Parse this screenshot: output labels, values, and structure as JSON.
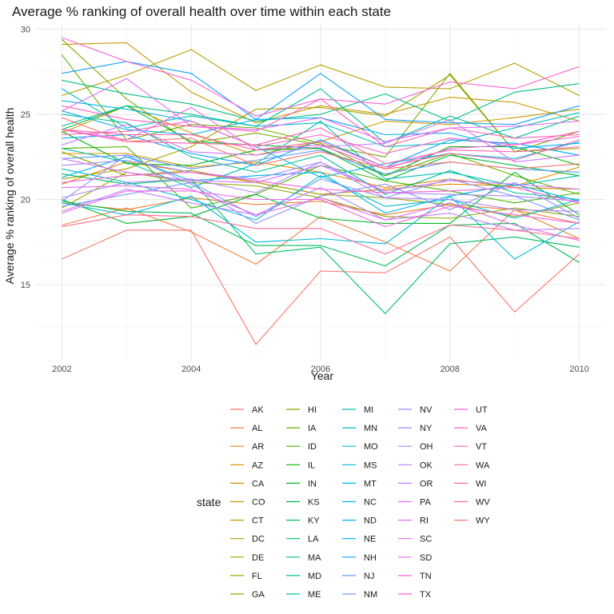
{
  "chart_data": {
    "type": "line",
    "title": "Average % ranking of overall health over time within each state",
    "xlabel": "Year",
    "ylabel": "Average % ranking of overall health",
    "x": [
      2002,
      2003,
      2004,
      2005,
      2006,
      2007,
      2008,
      2009,
      2010
    ],
    "xlim": [
      2002,
      2010
    ],
    "ylim": [
      10.5,
      30.3
    ],
    "xticks": [
      2002,
      2004,
      2006,
      2008,
      2010
    ],
    "yticks": [
      15,
      20,
      25,
      30
    ],
    "grid": true,
    "legend_title": "state",
    "legend_position": "bottom",
    "series": [
      {
        "name": "AK",
        "color": "#F8766D",
        "values": [
          16.5,
          18.2,
          18.2,
          11.5,
          15.8,
          15.7,
          17.8,
          13.4,
          16.8
        ]
      },
      {
        "name": "AL",
        "color": "#F47D4D",
        "values": [
          18.5,
          19.5,
          18.1,
          16.2,
          19.0,
          17.5,
          15.8,
          19.4,
          18.6
        ]
      },
      {
        "name": "AR",
        "color": "#EF8325",
        "values": [
          19.8,
          19.4,
          20.1,
          19.7,
          19.9,
          19.1,
          19.7,
          19.4,
          17.7
        ]
      },
      {
        "name": "AZ",
        "color": "#E38900",
        "values": [
          20.9,
          22.2,
          21.6,
          21.0,
          20.3,
          20.6,
          20.9,
          20.8,
          21.9
        ]
      },
      {
        "name": "CA",
        "color": "#D89000",
        "values": [
          22.7,
          22.7,
          21.9,
          22.2,
          21.6,
          20.7,
          21.2,
          20.7,
          20.6
        ]
      },
      {
        "name": "CO",
        "color": "#CE9700",
        "values": [
          23.9,
          25.5,
          23.9,
          22.6,
          23.4,
          24.6,
          24.4,
          24.8,
          25.3
        ]
      },
      {
        "name": "CT",
        "color": "#C49A00",
        "values": [
          29.1,
          29.2,
          26.3,
          24.5,
          25.5,
          25.0,
          26.0,
          25.7,
          24.6
        ]
      },
      {
        "name": "DC",
        "color": "#B79F00",
        "values": [
          26.1,
          27.3,
          28.8,
          26.4,
          27.9,
          26.6,
          26.5,
          28.0,
          26.1
        ]
      },
      {
        "name": "DE",
        "color": "#AAA300",
        "values": [
          21.2,
          21.8,
          23.1,
          25.3,
          25.4,
          24.9,
          27.3,
          22.8,
          23.0
        ]
      },
      {
        "name": "FL",
        "color": "#9DA700",
        "values": [
          22.8,
          21.4,
          21.7,
          21.0,
          20.3,
          20.1,
          19.7,
          19.0,
          19.8
        ]
      },
      {
        "name": "GA",
        "color": "#8EAB00",
        "values": [
          19.5,
          21.6,
          21.0,
          20.8,
          20.1,
          19.0,
          18.9,
          19.5,
          19.0
        ]
      },
      {
        "name": "HI",
        "color": "#7CAE00",
        "values": [
          29.4,
          25.9,
          23.3,
          23.9,
          23.2,
          22.5,
          27.4,
          22.8,
          24.0
        ]
      },
      {
        "name": "IA",
        "color": "#68B200",
        "values": [
          28.5,
          23.5,
          24.4,
          24.2,
          23.3,
          21.4,
          22.7,
          21.4,
          20.3
        ]
      },
      {
        "name": "ID",
        "color": "#4BB400",
        "values": [
          23.0,
          23.1,
          19.5,
          20.3,
          22.0,
          21.1,
          20.5,
          19.8,
          20.4
        ]
      },
      {
        "name": "IL",
        "color": "#00B702",
        "values": [
          24.0,
          22.1,
          22.0,
          22.9,
          23.0,
          21.4,
          23.1,
          23.1,
          22.0
        ]
      },
      {
        "name": "IN",
        "color": "#00B92A",
        "values": [
          20.0,
          18.6,
          19.0,
          20.3,
          18.9,
          18.6,
          18.6,
          21.6,
          19.1
        ]
      },
      {
        "name": "KS",
        "color": "#00BA42",
        "values": [
          24.1,
          25.5,
          23.4,
          23.2,
          23.0,
          21.1,
          22.6,
          22.0,
          21.4
        ]
      },
      {
        "name": "KY",
        "color": "#00BC56",
        "values": [
          19.9,
          19.3,
          19.2,
          17.3,
          17.3,
          16.1,
          18.5,
          18.6,
          16.3
        ]
      },
      {
        "name": "LA",
        "color": "#00BD67",
        "values": [
          21.5,
          20.9,
          21.2,
          16.8,
          17.2,
          13.3,
          17.4,
          17.8,
          17.2
        ]
      },
      {
        "name": "MA",
        "color": "#00BF7D",
        "values": [
          27.0,
          26.2,
          25.6,
          24.6,
          25.0,
          26.2,
          24.6,
          26.3,
          26.8
        ]
      },
      {
        "name": "MD",
        "color": "#00C08B",
        "values": [
          24.3,
          25.5,
          25.0,
          24.3,
          26.5,
          23.3,
          24.9,
          23.6,
          24.9
        ]
      },
      {
        "name": "ME",
        "color": "#00C097",
        "values": [
          25.0,
          24.5,
          22.5,
          21.6,
          22.6,
          20.3,
          21.7,
          20.4,
          20.0
        ]
      },
      {
        "name": "MI",
        "color": "#00C0AF",
        "values": [
          23.0,
          22.2,
          20.7,
          22.1,
          24.6,
          21.2,
          21.6,
          20.8,
          21.4
        ]
      },
      {
        "name": "MN",
        "color": "#00BFC4",
        "values": [
          26.5,
          24.2,
          24.9,
          24.3,
          24.5,
          23.1,
          23.3,
          24.2,
          25.1
        ]
      },
      {
        "name": "MO",
        "color": "#00BDD0",
        "values": [
          21.8,
          21.0,
          20.0,
          18.8,
          21.4,
          19.6,
          20.0,
          18.9,
          20.0
        ]
      },
      {
        "name": "MS",
        "color": "#00BBDB",
        "values": [
          19.8,
          19.1,
          20.2,
          17.5,
          17.7,
          17.4,
          20.2,
          16.5,
          18.7
        ]
      },
      {
        "name": "MT",
        "color": "#00B8E5",
        "values": [
          25.8,
          25.3,
          24.6,
          23.1,
          21.3,
          22.1,
          22.7,
          22.4,
          23.4
        ]
      },
      {
        "name": "NC",
        "color": "#00B4F0",
        "values": [
          21.3,
          22.5,
          21.1,
          21.4,
          21.6,
          19.2,
          20.2,
          20.9,
          19.9
        ]
      },
      {
        "name": "ND",
        "color": "#00ADF9",
        "values": [
          25.2,
          24.1,
          23.8,
          24.7,
          24.8,
          23.8,
          23.9,
          23.0,
          23.3
        ]
      },
      {
        "name": "NE",
        "color": "#00A5FF",
        "values": [
          23.6,
          23.8,
          22.7,
          22.0,
          23.5,
          21.9,
          23.5,
          23.3,
          22.6
        ]
      },
      {
        "name": "NH",
        "color": "#13A0FF",
        "values": [
          27.4,
          28.1,
          27.4,
          24.7,
          27.4,
          24.7,
          24.5,
          24.4,
          25.5
        ]
      },
      {
        "name": "NJ",
        "color": "#619CFF",
        "values": [
          22.4,
          22.6,
          21.8,
          22.3,
          22.9,
          21.5,
          22.2,
          21.8,
          21.6
        ]
      },
      {
        "name": "NM",
        "color": "#7D97FF",
        "values": [
          19.6,
          20.3,
          21.0,
          19.0,
          21.2,
          20.1,
          21.2,
          20.2,
          18.8
        ]
      },
      {
        "name": "NV",
        "color": "#8F93FF",
        "values": [
          19.9,
          22.6,
          20.9,
          18.6,
          20.2,
          20.9,
          19.4,
          21.0,
          18.9
        ]
      },
      {
        "name": "NY",
        "color": "#A58AFF",
        "values": [
          22.0,
          22.3,
          21.6,
          21.2,
          22.2,
          20.4,
          20.3,
          20.2,
          19.9
        ]
      },
      {
        "name": "OH",
        "color": "#B385FF",
        "values": [
          20.1,
          21.0,
          21.2,
          20.4,
          22.2,
          20.1,
          20.0,
          19.4,
          19.3
        ]
      },
      {
        "name": "OK",
        "color": "#BF80FF",
        "values": [
          19.3,
          20.6,
          19.8,
          19.1,
          20.7,
          18.8,
          19.2,
          18.2,
          18.3
        ]
      },
      {
        "name": "OR",
        "color": "#CC7AFF",
        "values": [
          23.2,
          24.4,
          22.8,
          22.6,
          23.1,
          23.3,
          24.7,
          22.2,
          22.6
        ]
      },
      {
        "name": "PA",
        "color": "#D874FD",
        "values": [
          22.4,
          21.6,
          21.1,
          21.0,
          22.0,
          20.5,
          21.1,
          20.9,
          20.6
        ]
      },
      {
        "name": "RI",
        "color": "#E16CF6",
        "values": [
          25.2,
          27.1,
          24.3,
          24.1,
          24.8,
          23.4,
          24.2,
          24.3,
          24.6
        ]
      },
      {
        "name": "SC",
        "color": "#E96BEF",
        "values": [
          20.7,
          20.8,
          20.6,
          19.1,
          20.1,
          18.8,
          19.8,
          18.5,
          17.6
        ]
      },
      {
        "name": "SD",
        "color": "#F066EA",
        "values": [
          24.1,
          23.5,
          25.4,
          22.9,
          23.2,
          21.8,
          23.0,
          23.2,
          23.7
        ]
      },
      {
        "name": "TN",
        "color": "#F564E3",
        "values": [
          19.2,
          20.5,
          20.5,
          20.0,
          20.0,
          18.4,
          19.6,
          19.1,
          18.6
        ]
      },
      {
        "name": "TX",
        "color": "#FA62DB",
        "values": [
          21.0,
          21.4,
          21.6,
          21.1,
          20.6,
          20.4,
          20.5,
          20.7,
          19.8
        ]
      },
      {
        "name": "UT",
        "color": "#FC61D5",
        "values": [
          29.5,
          28.1,
          27.0,
          24.9,
          25.9,
          25.6,
          26.9,
          26.5,
          27.8
        ]
      },
      {
        "name": "VA",
        "color": "#FF61C3",
        "values": [
          23.8,
          24.0,
          24.6,
          23.1,
          23.8,
          22.7,
          23.6,
          23.2,
          24.0
        ]
      },
      {
        "name": "VT",
        "color": "#FF62BC",
        "values": [
          25.5,
          24.7,
          24.3,
          24.0,
          25.9,
          23.1,
          24.2,
          23.6,
          23.8
        ]
      },
      {
        "name": "WA",
        "color": "#FF64B0",
        "values": [
          24.1,
          23.4,
          23.3,
          23.2,
          24.2,
          22.1,
          22.9,
          22.8,
          23.1
        ]
      },
      {
        "name": "WI",
        "color": "#FF67A4",
        "values": [
          24.1,
          23.8,
          23.8,
          22.9,
          23.4,
          21.9,
          22.7,
          22.3,
          23.5
        ]
      },
      {
        "name": "WV",
        "color": "#FF6C91",
        "values": [
          18.4,
          19.1,
          19.0,
          18.3,
          18.3,
          16.8,
          18.5,
          18.2,
          17.7
        ]
      },
      {
        "name": "WY",
        "color": "#F8766D",
        "values": [
          24.8,
          23.4,
          23.6,
          22.0,
          22.8,
          21.8,
          22.2,
          21.8,
          22.1
        ]
      }
    ]
  },
  "colors": {
    "grid_major": "#e6e6e6",
    "grid_minor": "#f2f2f2",
    "text": "#1a1a1a",
    "tick_text": "#4d4d4d"
  }
}
